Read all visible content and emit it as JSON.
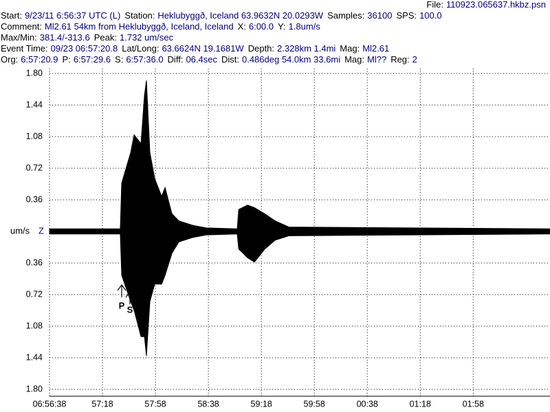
{
  "chart_data": {
    "type": "waveform",
    "file": {
      "label": "File:",
      "value": "110923.065637.hkbz.psn"
    },
    "header": [
      [
        {
          "label": "Start:",
          "value": "9/23/11  6:56:37 UTC (L)"
        },
        {
          "label": "Station:",
          "value": "Heklubyggð, Iceland 63.9632N 20.0293W"
        },
        {
          "label": "Samples:",
          "value": "36100"
        },
        {
          "label": "SPS:",
          "value": "100.0"
        }
      ],
      [
        {
          "label": "Comment:",
          "value": "Ml2.61 54km from Heklubyggð, Iceland, Iceland"
        },
        {
          "label": "X:",
          "value": "6:00.0"
        },
        {
          "label": "Y:",
          "value": "1.8um/s"
        }
      ],
      [
        {
          "label": "Max/Min:",
          "value": "381.4/-313.6"
        },
        {
          "label": "Peak:",
          "value": "1.732 um/sec"
        }
      ],
      [
        {
          "label": "Event Time:",
          "value": "09/23 06:57:20.8"
        },
        {
          "label": "Lat/Long:",
          "value": "63.6624N 19.1681W"
        },
        {
          "label": "Depth:",
          "value": "2.328km 1.4mi"
        },
        {
          "label": "Mag:",
          "value": "Ml2.61"
        }
      ],
      [
        {
          "label": "Org:",
          "value": "6:57:20.9"
        },
        {
          "label": "P:",
          "value": "6:57:29.6"
        },
        {
          "label": "S:",
          "value": "6:57:36.0"
        },
        {
          "label": "Diff:",
          "value": "06.4sec"
        },
        {
          "label": "Dist:",
          "value": "0.486deg 54.0km 33.6mi"
        },
        {
          "label": "Mag:",
          "value": "Ml??"
        },
        {
          "label": "Reg:",
          "value": "2"
        }
      ]
    ],
    "y_unit": "um/s",
    "channel": "Z",
    "annotations": [
      "P",
      "S"
    ],
    "x": [
      24998,
      25051.5,
      25052.5,
      25059.3,
      25061.9,
      25067.1,
      25069.7,
      25071.2,
      25073.8,
      25077.5,
      25082.7,
      25085.3,
      25090.5,
      25095.7,
      25106.1,
      25116.4,
      25139.8,
      25140.9,
      25147.6,
      25152.8,
      25160.6,
      25168.4,
      25178.8,
      25376
    ],
    "series": [
      {
        "color": "#000000",
        "values": [
          0.03,
          0.03,
          0.55,
          0.9,
          1.1,
          1.0,
          1.55,
          1.72,
          0.9,
          0.6,
          0.4,
          0.5,
          0.2,
          0.12,
          0.07,
          0.04,
          0.03,
          0.25,
          0.3,
          0.27,
          0.2,
          0.12,
          0.05,
          0.03
        ]
      },
      {
        "color": "#000000",
        "values": [
          -0.03,
          -0.03,
          -0.5,
          -0.8,
          -0.9,
          -1.2,
          -1.2,
          -1.42,
          -0.8,
          -0.6,
          -0.6,
          -0.5,
          -0.25,
          -0.12,
          -0.07,
          -0.04,
          -0.03,
          -0.2,
          -0.3,
          -0.35,
          -0.2,
          -0.1,
          -0.05,
          -0.03
        ]
      }
    ],
    "xlim": [
      24998,
      25376
    ],
    "xticks": [
      {
        "value": 24998,
        "label": "06:56:38"
      },
      {
        "value": 25038,
        "label": "57:18"
      },
      {
        "value": 25078,
        "label": "57:58"
      },
      {
        "value": 25118,
        "label": "58:38"
      },
      {
        "value": 25158,
        "label": "59:18"
      },
      {
        "value": 25198,
        "label": "59:58"
      },
      {
        "value": 25238,
        "label": "00:38"
      },
      {
        "value": 25278,
        "label": "01:18"
      },
      {
        "value": 25318,
        "label": "01:58"
      }
    ],
    "ylim": [
      -1.8,
      1.8
    ],
    "yticks": [
      {
        "value": 1.8,
        "label": "1.80"
      },
      {
        "value": 1.44,
        "label": "1.44"
      },
      {
        "value": 1.08,
        "label": "1.08"
      },
      {
        "value": 0.72,
        "label": "0.72"
      },
      {
        "value": 0.36,
        "label": "0.36"
      },
      {
        "value": -0.36,
        "label": "0.36"
      },
      {
        "value": -0.72,
        "label": "0.72"
      },
      {
        "value": -1.08,
        "label": "1.08"
      },
      {
        "value": -1.44,
        "label": "1.44"
      },
      {
        "value": -1.8,
        "label": "1.80"
      }
    ],
    "grid": true,
    "label_color": "#000000",
    "value_color": "#000080"
  }
}
